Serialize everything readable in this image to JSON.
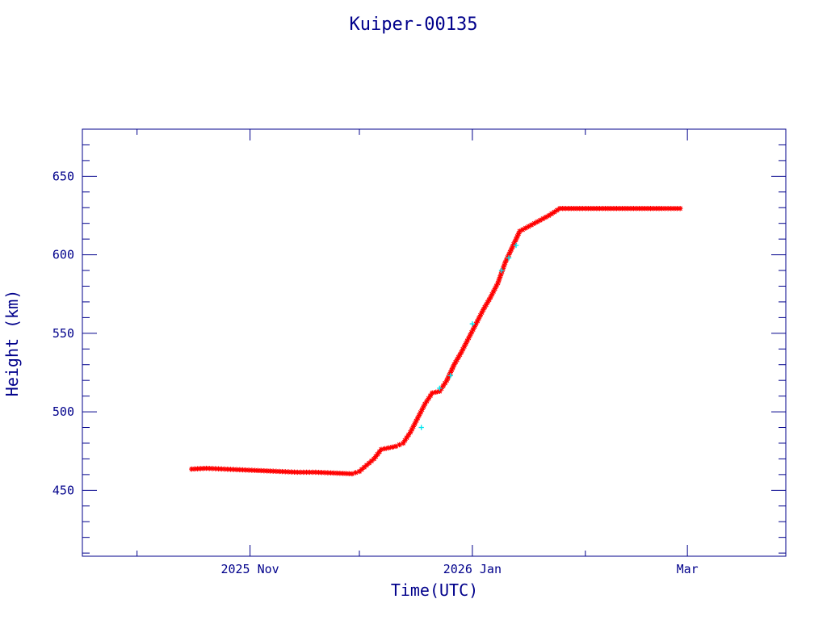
{
  "chart_data": {
    "type": "scatter",
    "title": "Kuiper-00135",
    "xlabel": "Time(UTC)",
    "ylabel": "Height (km)",
    "x_unit": "date",
    "xlim": [
      "2025-09-16",
      "2026-03-28"
    ],
    "ylim": [
      408,
      680
    ],
    "grid": false,
    "legend": "none",
    "x_ticks": [
      {
        "date": "2025-11-01",
        "label": "2025 Nov"
      },
      {
        "date": "2026-01-01",
        "label": "2026 Jan"
      },
      {
        "date": "2026-03-01",
        "label": "Mar"
      }
    ],
    "y_ticks": [
      450,
      500,
      550,
      600,
      650
    ],
    "colors": {
      "axis": "#00008b",
      "text": "#00008b",
      "primary_marker": "#ff0000",
      "secondary_marker": "#00e5ee"
    },
    "series": [
      {
        "color": "#ff0000",
        "marker": "asterisk",
        "x": [
          "2025-10-16",
          "2025-10-20",
          "2025-10-25",
          "2025-10-30",
          "2025-11-04",
          "2025-11-09",
          "2025-11-14",
          "2025-11-19",
          "2025-11-24",
          "2025-11-29",
          "2025-12-01",
          "2025-12-03",
          "2025-12-05",
          "2025-12-07",
          "2025-12-09",
          "2025-12-11",
          "2025-12-13",
          "2025-12-15",
          "2025-12-17",
          "2025-12-19",
          "2025-12-21",
          "2025-12-23",
          "2025-12-25",
          "2025-12-27",
          "2025-12-29",
          "2025-12-31",
          "2026-01-02",
          "2026-01-04",
          "2026-01-06",
          "2026-01-08",
          "2026-01-10",
          "2026-01-12",
          "2026-01-14",
          "2026-01-18",
          "2026-01-22",
          "2026-01-25",
          "2026-02-01",
          "2026-02-08",
          "2026-02-15",
          "2026-02-22",
          "2026-02-27"
        ],
        "y": [
          463.5,
          464,
          463.5,
          463,
          462.5,
          462,
          461.5,
          461.5,
          461,
          460.5,
          462,
          466,
          470,
          476,
          477,
          478,
          480,
          487,
          496,
          505,
          512,
          513,
          520,
          530,
          538,
          547,
          556,
          565,
          573,
          582,
          595,
          605,
          615,
          620,
          625,
          629.5,
          629.5,
          629.5,
          629.5,
          629.5,
          629.5
        ]
      },
      {
        "color": "#00e5ee",
        "marker": "plus",
        "x": [
          "2025-12-18",
          "2025-12-23",
          "2025-12-26",
          "2026-01-01",
          "2026-01-09",
          "2026-01-11",
          "2026-01-13"
        ],
        "y": [
          490,
          515,
          523,
          556,
          590,
          598,
          606
        ]
      }
    ]
  }
}
